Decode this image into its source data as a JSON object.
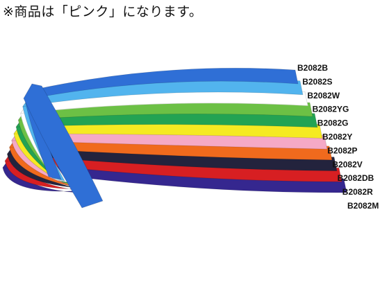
{
  "notice": "※商品は「ピンク」になります。",
  "bands": [
    {
      "code": "B2082B",
      "color": "#2f6fd6"
    },
    {
      "code": "B2082S",
      "color": "#52b4ee"
    },
    {
      "code": "B2082W",
      "color": "#ffffff"
    },
    {
      "code": "B2082YG",
      "color": "#6cc045"
    },
    {
      "code": "B2082G",
      "color": "#23a353"
    },
    {
      "code": "B2082Y",
      "color": "#f5ea22"
    },
    {
      "code": "B2082P",
      "color": "#f5a9c6"
    },
    {
      "code": "B2082V",
      "color": "#f06a1d"
    },
    {
      "code": "B2082DB",
      "color": "#23233d"
    },
    {
      "code": "B2082R",
      "color": "#d71f22"
    },
    {
      "code": "B2082M",
      "color": "#35278f"
    }
  ]
}
